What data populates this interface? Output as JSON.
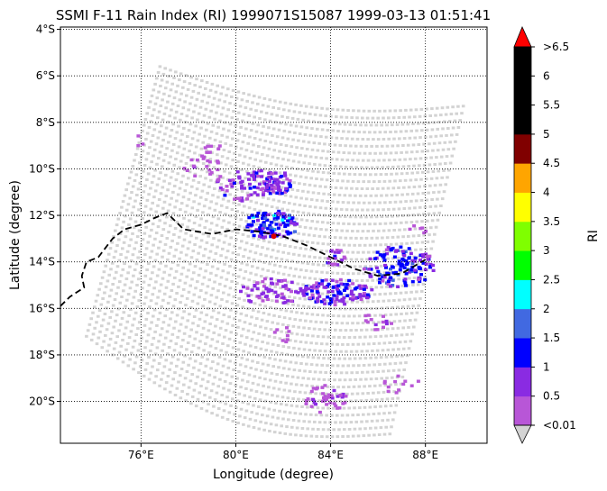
{
  "chart_data": {
    "type": "heatmap",
    "title": "SSMI F-11 Rain Index (RI) 1999071S15087 1999-03-13 01:51:41",
    "xlabel": "Longitude (degree)",
    "ylabel": "Latitude (degree)",
    "xlim": [
      72.6,
      90.6
    ],
    "ylim": [
      -21.8,
      -3.9
    ],
    "x_ticks": [
      {
        "value": 76,
        "label": "76°E"
      },
      {
        "value": 80,
        "label": "80°E"
      },
      {
        "value": 84,
        "label": "84°E"
      },
      {
        "value": 88,
        "label": "88°E"
      }
    ],
    "y_ticks": [
      {
        "value": -4,
        "label": "4°S"
      },
      {
        "value": -6,
        "label": "6°S"
      },
      {
        "value": -8,
        "label": "8°S"
      },
      {
        "value": -10,
        "label": "10°S"
      },
      {
        "value": -12,
        "label": "12°S"
      },
      {
        "value": -14,
        "label": "14°S"
      },
      {
        "value": -16,
        "label": "16°S"
      },
      {
        "value": -18,
        "label": "18°S"
      },
      {
        "value": -20,
        "label": "20°S"
      }
    ],
    "grid": true,
    "grid_style": "dotted",
    "swath_corners": [
      {
        "lon": 76.8,
        "lat": -5.6
      },
      {
        "lon": 89.6,
        "lat": -7.3
      },
      {
        "lon": 86.5,
        "lat": -21.4
      },
      {
        "lon": 73.7,
        "lat": -17.2
      }
    ],
    "background_color": "#d3d3d3",
    "colorbar": {
      "label": "RI",
      "bins": [
        {
          "label": "<0.01",
          "color": "#b856d7"
        },
        {
          "label": "0.5",
          "color": "#8a2be2"
        },
        {
          "label": "1",
          "color": "#0000ff"
        },
        {
          "label": "1.5",
          "color": "#4169e1"
        },
        {
          "label": "2",
          "color": "#00ffff"
        },
        {
          "label": "2.5",
          "color": "#00ff00"
        },
        {
          "label": "3",
          "color": "#7fff00"
        },
        {
          "label": "3.5",
          "color": "#ffff00"
        },
        {
          "label": "4",
          "color": "#ffa500"
        },
        {
          "label": "4.5",
          "color": "#800000"
        },
        {
          "label": "5",
          "color": "#000000"
        },
        {
          "label": "5.5",
          "color": "#000000"
        },
        {
          "label": "6",
          "color": "#000000"
        }
      ],
      "tick_labels": [
        "<0.01",
        "0.5",
        "1",
        "1.5",
        "2",
        "2.5",
        "3",
        "3.5",
        "4",
        "4.5",
        "5",
        "5.5",
        "6",
        ">6.5"
      ],
      "over_color": "#ff0000",
      "under_color": "#d3d3d3"
    },
    "storm_track": [
      [
        72.6,
        -15.9
      ],
      [
        73.0,
        -15.5
      ],
      [
        73.6,
        -15.1
      ],
      [
        73.5,
        -14.6
      ],
      [
        73.7,
        -14.0
      ],
      [
        74.2,
        -13.8
      ],
      [
        74.8,
        -13.0
      ],
      [
        75.3,
        -12.6
      ],
      [
        76.0,
        -12.4
      ],
      [
        76.6,
        -12.1
      ],
      [
        77.1,
        -11.9
      ],
      [
        77.8,
        -12.6
      ],
      [
        79.0,
        -12.8
      ],
      [
        80.0,
        -12.6
      ],
      [
        81.0,
        -12.7
      ],
      [
        82.0,
        -12.9
      ],
      [
        83.0,
        -13.3
      ],
      [
        84.0,
        -13.8
      ],
      [
        85.0,
        -14.3
      ],
      [
        86.0,
        -14.6
      ],
      [
        87.0,
        -14.5
      ],
      [
        88.0,
        -13.9
      ]
    ],
    "storm_center": {
      "lon": 81.6,
      "lat": -12.9,
      "color": "#d90000"
    },
    "rain_clusters": [
      {
        "lon": 81.5,
        "lat": -12.4,
        "rx": 1.2,
        "ry": 0.6,
        "n": 110,
        "weights": [
          20,
          32,
          40,
          14,
          6
        ]
      },
      {
        "lon": 86.9,
        "lat": -14.2,
        "rx": 1.5,
        "ry": 0.9,
        "n": 125,
        "weights": [
          22,
          36,
          42,
          12,
          0
        ]
      },
      {
        "lon": 84.2,
        "lat": -15.3,
        "rx": 1.6,
        "ry": 0.55,
        "n": 110,
        "weights": [
          35,
          44,
          20,
          0,
          0
        ]
      },
      {
        "lon": 80.5,
        "lat": -10.7,
        "rx": 1.4,
        "ry": 0.7,
        "n": 70,
        "weights": [
          50,
          45,
          5,
          0,
          0
        ]
      },
      {
        "lon": 81.7,
        "lat": -10.6,
        "rx": 0.7,
        "ry": 0.5,
        "n": 45,
        "weights": [
          35,
          45,
          20,
          0,
          0
        ]
      },
      {
        "lon": 84.2,
        "lat": -13.8,
        "rx": 0.5,
        "ry": 0.35,
        "n": 18,
        "weights": [
          45,
          45,
          10,
          0,
          0
        ]
      },
      {
        "lon": 81.5,
        "lat": -15.3,
        "rx": 1.3,
        "ry": 0.6,
        "n": 60,
        "weights": [
          55,
          45,
          0,
          0,
          0
        ]
      },
      {
        "lon": 83.8,
        "lat": -19.9,
        "rx": 0.9,
        "ry": 0.6,
        "n": 42,
        "weights": [
          85,
          15,
          0,
          0,
          0
        ]
      },
      {
        "lon": 86.0,
        "lat": -16.5,
        "rx": 0.6,
        "ry": 0.5,
        "n": 14,
        "weights": [
          80,
          20,
          0,
          0,
          0
        ]
      },
      {
        "lon": 87.0,
        "lat": -19.3,
        "rx": 0.8,
        "ry": 0.4,
        "n": 12,
        "weights": [
          100,
          0,
          0,
          0,
          0
        ]
      },
      {
        "lon": 78.6,
        "lat": -10.0,
        "rx": 0.9,
        "ry": 0.5,
        "n": 18,
        "weights": [
          85,
          15,
          0,
          0,
          0
        ]
      },
      {
        "lon": 79.0,
        "lat": -9.3,
        "rx": 0.7,
        "ry": 0.4,
        "n": 10,
        "weights": [
          100,
          0,
          0,
          0,
          0
        ]
      },
      {
        "lon": 82.0,
        "lat": -17.2,
        "rx": 0.4,
        "ry": 0.4,
        "n": 8,
        "weights": [
          100,
          0,
          0,
          0,
          0
        ]
      },
      {
        "lon": 87.7,
        "lat": -12.5,
        "rx": 0.4,
        "ry": 0.4,
        "n": 6,
        "weights": [
          100,
          0,
          0,
          0,
          0
        ]
      },
      {
        "lon": 76.0,
        "lat": -8.8,
        "rx": 0.3,
        "ry": 0.3,
        "n": 3,
        "weights": [
          100,
          0,
          0,
          0,
          0
        ]
      }
    ]
  }
}
